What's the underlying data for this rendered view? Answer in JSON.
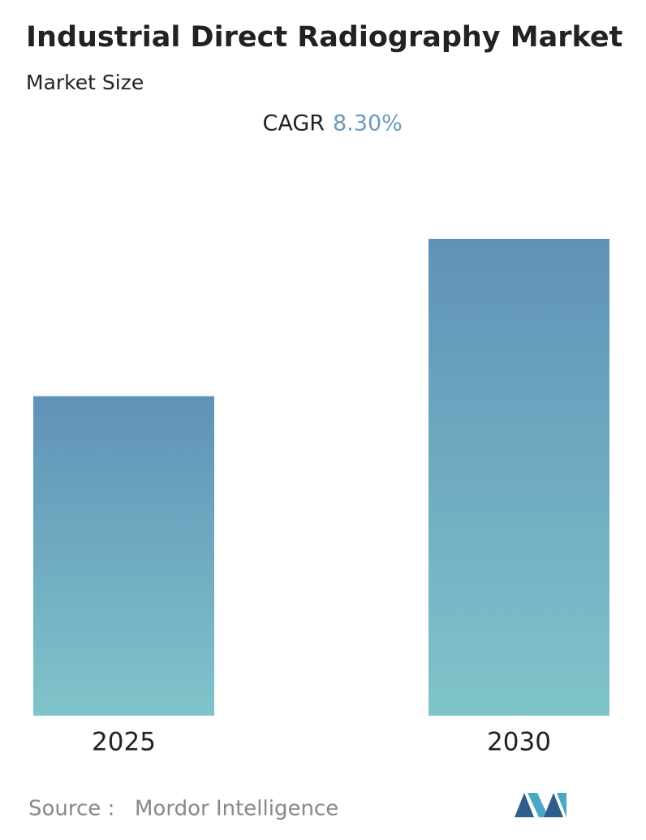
{
  "chart_data": {
    "type": "bar",
    "title": "Industrial Direct Radiography Market",
    "subtitle": "Market Size",
    "cagr_label": "CAGR",
    "cagr_value": "8.30%",
    "categories": [
      "2025",
      "2030"
    ],
    "values": [
      67,
      100
    ],
    "ylim": [
      0,
      100
    ],
    "gradient": [
      "#5f92b8",
      "#80c4ca"
    ],
    "source_label": "Source :",
    "source": "Mordor Intelligence"
  }
}
